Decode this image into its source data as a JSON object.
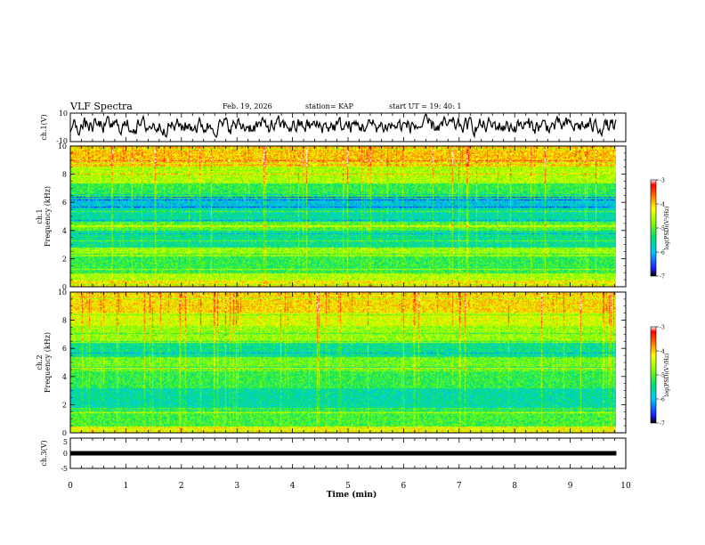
{
  "header": {
    "title": "VLF Spectra",
    "date": "Feb. 19, 2026",
    "station": "station= KAP",
    "start": "start  UT  =   19: 40: 1"
  },
  "chart_data": [
    {
      "type": "line",
      "name": "ch1-waveform",
      "ylabel": "ch.1(V)",
      "ylim": [
        -10,
        10
      ],
      "y_ticks": [
        "10",
        "-10"
      ],
      "x_range_min": [
        0,
        9.83
      ],
      "description_values": "noise waveform mostly between -6 and 8 V"
    },
    {
      "type": "heatmap",
      "name": "ch1-spectrogram",
      "ylabel_channel": "ch.1",
      "ylabel": "Frequency (kHz)",
      "ylim": [
        0,
        10
      ],
      "y_ticks": [
        "0",
        "2",
        "4",
        "6",
        "8",
        "10"
      ],
      "x_range_min": [
        0,
        9.83
      ],
      "colorbar": {
        "label": "log(PSD)(V²/Hz)",
        "range": [
          -7,
          -3
        ],
        "ticks": [
          "-3",
          "-4",
          "-5",
          "-6",
          "-7"
        ]
      },
      "bands_khz": [
        {
          "from": 0.0,
          "to": 0.5,
          "level": -4.2
        },
        {
          "from": 0.5,
          "to": 1.0,
          "level": -4.6
        },
        {
          "from": 1.0,
          "to": 2.2,
          "level": -5.2
        },
        {
          "from": 2.2,
          "to": 2.8,
          "level": -4.7
        },
        {
          "from": 2.8,
          "to": 4.0,
          "level": -5.5
        },
        {
          "from": 4.0,
          "to": 4.6,
          "level": -5.0
        },
        {
          "from": 4.6,
          "to": 5.6,
          "level": -5.6
        },
        {
          "from": 5.6,
          "to": 6.4,
          "level": -5.9
        },
        {
          "from": 6.4,
          "to": 7.4,
          "level": -5.2
        },
        {
          "from": 7.4,
          "to": 8.6,
          "level": -4.6
        },
        {
          "from": 8.6,
          "to": 10.0,
          "level": -4.0
        }
      ]
    },
    {
      "type": "heatmap",
      "name": "ch2-spectrogram",
      "ylabel_channel": "ch.2",
      "ylabel": "Frequency (kHz)",
      "ylim": [
        0,
        10
      ],
      "y_ticks": [
        "0",
        "2",
        "4",
        "6",
        "8",
        "10"
      ],
      "x_range_min": [
        0,
        9.83
      ],
      "colorbar": {
        "label": "log(PSD)(V²/Hz)",
        "range": [
          -7,
          -3
        ],
        "ticks": [
          "-3",
          "-4",
          "-5",
          "-6",
          "-7"
        ]
      },
      "bands_khz": [
        {
          "from": 0.0,
          "to": 0.5,
          "level": -4.3
        },
        {
          "from": 0.5,
          "to": 1.8,
          "level": -5.1
        },
        {
          "from": 1.8,
          "to": 3.2,
          "level": -5.6
        },
        {
          "from": 3.2,
          "to": 4.4,
          "level": -5.2
        },
        {
          "from": 4.4,
          "to": 5.4,
          "level": -4.9
        },
        {
          "from": 5.4,
          "to": 6.4,
          "level": -5.5
        },
        {
          "from": 6.4,
          "to": 7.6,
          "level": -4.7
        },
        {
          "from": 7.6,
          "to": 8.6,
          "level": -4.4
        },
        {
          "from": 8.6,
          "to": 10.0,
          "level": -4.1
        }
      ]
    },
    {
      "type": "line",
      "name": "ch3-waveform",
      "ylabel": "ch.3(V)",
      "ylim": [
        -5,
        5
      ],
      "y_ticks": [
        "5",
        "0",
        "-5"
      ],
      "x_range_min": [
        0,
        9.83
      ],
      "constant_level": 0
    }
  ],
  "x_axis": {
    "label": "Time  (min)",
    "range": [
      0,
      10
    ],
    "ticks": [
      "0",
      "1",
      "2",
      "3",
      "4",
      "5",
      "6",
      "7",
      "8",
      "9",
      "10"
    ]
  }
}
